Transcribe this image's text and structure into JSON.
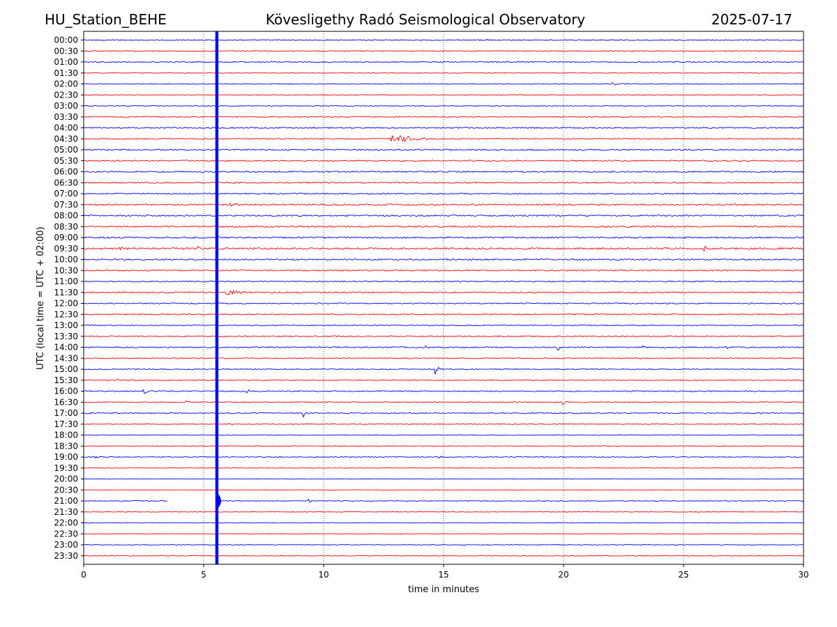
{
  "header": {
    "station": "HU_Station_BEHE",
    "title": "Kövesligethy Radó Seismological Observatory",
    "date": "2025-07-17"
  },
  "colors": {
    "trace_a": "#0000ff",
    "trace_b": "#ff0000",
    "grid": "#000000"
  },
  "chart_data": {
    "type": "line",
    "title": "Kövesligethy Radó Seismological Observatory",
    "xlabel": "time in minutes",
    "ylabel": "UTC (local time = UTC + 02:00)",
    "xlim": [
      0,
      30
    ],
    "xticks": [
      0,
      5,
      10,
      15,
      20,
      25,
      30
    ],
    "grid": "vertical dotted at x ticks",
    "rows": [
      "00:00",
      "00:30",
      "01:00",
      "01:30",
      "02:00",
      "02:30",
      "03:00",
      "03:30",
      "04:00",
      "04:30",
      "05:00",
      "05:30",
      "06:00",
      "06:30",
      "07:00",
      "07:30",
      "08:00",
      "08:30",
      "09:00",
      "09:30",
      "10:00",
      "10:30",
      "11:00",
      "11:30",
      "12:00",
      "12:30",
      "13:00",
      "13:30",
      "14:00",
      "14:30",
      "15:00",
      "15:30",
      "16:00",
      "16:30",
      "17:00",
      "17:30",
      "18:00",
      "18:30",
      "19:00",
      "19:30",
      "20:00",
      "20:30",
      "21:00",
      "21:30",
      "22:00",
      "22:30",
      "23:00",
      "23:30"
    ],
    "row_colors": [
      "blue",
      "red"
    ],
    "noise_level": [
      0.7,
      0.6,
      0.8,
      0.5,
      0.6,
      0.5,
      0.6,
      0.7,
      0.9,
      0.8,
      1.0,
      0.9,
      1.0,
      0.9,
      0.9,
      1.0,
      1.0,
      1.1,
      1.1,
      1.2,
      1.0,
      0.9,
      0.8,
      0.9,
      0.8,
      0.8,
      0.7,
      0.8,
      0.9,
      0.7,
      0.7,
      0.7,
      0.8,
      0.7,
      0.8,
      0.6,
      0.5,
      0.5,
      0.6,
      0.4,
      0.3,
      0.3,
      0.6,
      0.4,
      0.4,
      0.4,
      0.5,
      0.5
    ],
    "events": [
      {
        "row": "00:00",
        "t": 16.8,
        "amp": 2.5,
        "dur": 0.15
      },
      {
        "row": "01:00",
        "t": 12.1,
        "amp": 2,
        "dur": 0.3
      },
      {
        "row": "01:00",
        "t": 24.6,
        "amp": 2,
        "dur": 0.8
      },
      {
        "row": "02:00",
        "t": 22.0,
        "amp": 3,
        "dur": 1.2
      },
      {
        "row": "04:30",
        "t": 12.8,
        "amp": 7,
        "dur": 2.5
      },
      {
        "row": "07:30",
        "t": 6.0,
        "amp": 3,
        "dur": 1.5
      },
      {
        "row": "09:30",
        "t": 1.5,
        "amp": 3,
        "dur": 1.2
      },
      {
        "row": "09:30",
        "t": 4.8,
        "amp": 4,
        "dur": 0.3
      },
      {
        "row": "09:30",
        "t": 25.9,
        "amp": 5,
        "dur": 0.3
      },
      {
        "row": "11:30",
        "t": 5.9,
        "amp": 6,
        "dur": 1.5
      },
      {
        "row": "14:00",
        "t": 14.3,
        "amp": 8,
        "dur": 0.2
      },
      {
        "row": "14:00",
        "t": 15.8,
        "amp": 6,
        "dur": 0.2
      },
      {
        "row": "14:00",
        "t": 19.8,
        "amp": 6,
        "dur": 0.25
      },
      {
        "row": "14:00",
        "t": 23.3,
        "amp": 5,
        "dur": 0.4
      },
      {
        "row": "14:00",
        "t": 26.8,
        "amp": 4,
        "dur": 0.2
      },
      {
        "row": "15:00",
        "t": 14.7,
        "amp": 8,
        "dur": 0.3
      },
      {
        "row": "15:30",
        "t": 1.4,
        "amp": 3,
        "dur": 0.3
      },
      {
        "row": "16:00",
        "t": 2.5,
        "amp": 7,
        "dur": 0.3
      },
      {
        "row": "16:00",
        "t": 6.7,
        "amp": 6,
        "dur": 0.5
      },
      {
        "row": "16:30",
        "t": 4.3,
        "amp": 4,
        "dur": 0.2
      },
      {
        "row": "16:30",
        "t": 20.0,
        "amp": 4,
        "dur": 0.4
      },
      {
        "row": "17:00",
        "t": 9.2,
        "amp": 6,
        "dur": 0.3
      },
      {
        "row": "19:00",
        "t": 0.4,
        "amp": 3,
        "dur": 0.8
      },
      {
        "row": "19:00",
        "t": 14.8,
        "amp": 3,
        "dur": 0.3
      },
      {
        "row": "21:00",
        "t": 9.4,
        "amp": 7,
        "dur": 0.15
      }
    ],
    "gaps": [
      {
        "row": "21:00",
        "from": 3.5,
        "to": 5.5
      }
    ],
    "main_event": {
      "t": 5.55,
      "amp_rows": [
        0,
        1.5
      ],
      "color": "blue"
    }
  }
}
